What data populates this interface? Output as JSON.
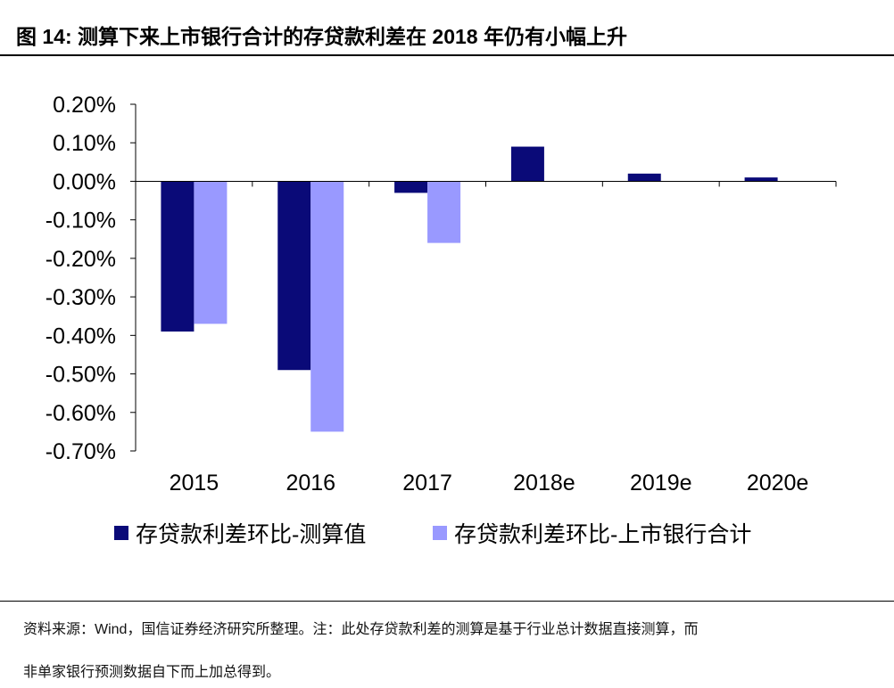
{
  "figure": {
    "title": "图 14:  测算下来上市银行合计的存贷款利差在 2018 年仍有小幅上升"
  },
  "chart_data": {
    "type": "bar",
    "title": "",
    "xlabel": "",
    "ylabel": "",
    "categories": [
      "2015",
      "2016",
      "2017",
      "2018e",
      "2019e",
      "2020e"
    ],
    "series": [
      {
        "name": "存贷款利差环比-测算值",
        "color": "#0a0a78",
        "values": [
          -0.39,
          -0.49,
          -0.03,
          0.09,
          0.02,
          0.01
        ]
      },
      {
        "name": "存贷款利差环比-上市银行合计",
        "color": "#9999ff",
        "values": [
          -0.37,
          -0.65,
          -0.16,
          null,
          null,
          null
        ]
      }
    ],
    "ylim": [
      -0.7,
      0.2
    ],
    "yticks": [
      0.2,
      0.1,
      0.0,
      -0.1,
      -0.2,
      -0.3,
      -0.4,
      -0.5,
      -0.6,
      -0.7
    ],
    "ytick_labels": [
      "0.20%",
      "0.10%",
      "0.00%",
      "-0.10%",
      "-0.20%",
      "-0.30%",
      "-0.40%",
      "-0.50%",
      "-0.60%",
      "-0.70%"
    ],
    "grid": false,
    "legend_position": "bottom"
  },
  "footnote": {
    "line1": "资料来源：Wind，国信证券经济研究所整理。注：此处存贷款利差的测算是基于行业总计数据直接测算，而",
    "line2": "非单家银行预测数据自下而上加总得到。"
  }
}
